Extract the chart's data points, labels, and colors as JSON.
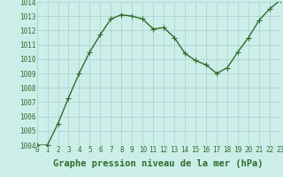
{
  "x": [
    0,
    1,
    2,
    3,
    4,
    5,
    6,
    7,
    8,
    9,
    10,
    11,
    12,
    13,
    14,
    15,
    16,
    17,
    18,
    19,
    20,
    21,
    22,
    23
  ],
  "y": [
    1004.0,
    1004.0,
    1005.5,
    1007.3,
    1009.0,
    1010.5,
    1011.7,
    1012.8,
    1013.1,
    1013.0,
    1012.8,
    1012.1,
    1012.2,
    1011.5,
    1010.4,
    1009.9,
    1009.6,
    1009.0,
    1009.4,
    1010.5,
    1011.5,
    1012.7,
    1013.5,
    1014.1
  ],
  "line_color": "#2d6e2d",
  "marker": "+",
  "marker_size": 4,
  "marker_color": "#2d6e2d",
  "bg_color": "#cceee8",
  "grid_color": "#aacccc",
  "xlabel": "Graphe pression niveau de la mer (hPa)",
  "xlabel_fontsize": 7.5,
  "xlabel_bold": true,
  "ylim": [
    1004,
    1014
  ],
  "xlim": [
    0,
    23
  ],
  "yticks": [
    1004,
    1005,
    1006,
    1007,
    1008,
    1009,
    1010,
    1011,
    1012,
    1013,
    1014
  ],
  "xticks": [
    0,
    1,
    2,
    3,
    4,
    5,
    6,
    7,
    8,
    9,
    10,
    11,
    12,
    13,
    14,
    15,
    16,
    17,
    18,
    19,
    20,
    21,
    22,
    23
  ],
  "tick_fontsize": 5.5,
  "line_width": 1.0,
  "tick_color": "#2d6e2d",
  "label_color": "#2d6e2d"
}
